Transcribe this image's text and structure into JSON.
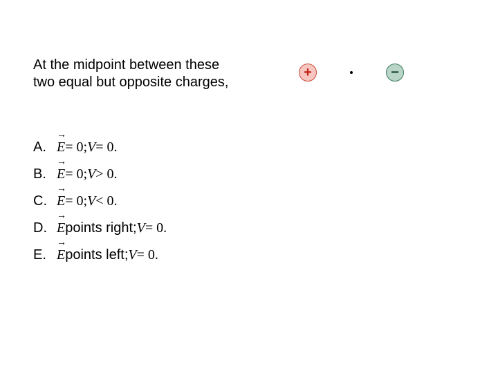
{
  "question": {
    "line1": "At the midpoint between these",
    "line2": "two equal but opposite charges,"
  },
  "diagram": {
    "plus_symbol": "+",
    "minus_symbol": "−",
    "plus_bg": "#f7c6c0",
    "plus_border": "#c94a3a",
    "plus_fg": "#c02418",
    "minus_bg": "#b9d5c8",
    "minus_border": "#3a7a5e",
    "minus_fg": "#1a4a34"
  },
  "options": {
    "A": {
      "letter": "A.",
      "E_sym": "E",
      "E_eq": " = 0; ",
      "V_sym": "V",
      "V_rel": " = 0."
    },
    "B": {
      "letter": "B.",
      "E_sym": "E",
      "E_eq": " = 0; ",
      "V_sym": "V",
      "V_rel": " > 0."
    },
    "C": {
      "letter": "C.",
      "E_sym": "E",
      "E_eq": " = 0; ",
      "V_sym": "V",
      "V_rel": " < 0."
    },
    "D": {
      "letter": "D.",
      "E_sym": "E",
      "dir": " points right; ",
      "V_sym": "V",
      "V_rel": " = 0."
    },
    "E": {
      "letter": "E.",
      "E_sym": "E",
      "dir": " points left; ",
      "V_sym": "V",
      "V_rel": " = 0."
    }
  },
  "style": {
    "body_font_size": 20,
    "text_color": "#000000",
    "background_color": "#ffffff"
  }
}
